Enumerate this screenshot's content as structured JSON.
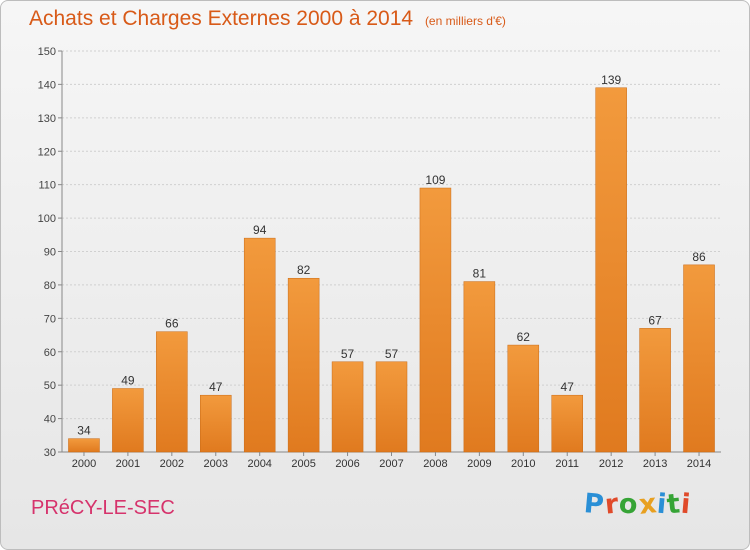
{
  "chart_data": {
    "type": "bar",
    "title": "Achats et Charges Externes 2000 à 2014",
    "subtitle": "(en milliers d'€)",
    "categories": [
      "2000",
      "2001",
      "2002",
      "2003",
      "2004",
      "2005",
      "2006",
      "2007",
      "2008",
      "2009",
      "2010",
      "2011",
      "2012",
      "2013",
      "2014"
    ],
    "values": [
      34,
      49,
      66,
      47,
      94,
      82,
      57,
      57,
      109,
      81,
      62,
      47,
      139,
      67,
      86
    ],
    "ylim": [
      30,
      150
    ],
    "yticks": [
      30,
      40,
      50,
      60,
      70,
      80,
      90,
      100,
      110,
      120,
      130,
      140,
      150
    ],
    "grid": true,
    "legend": "none",
    "bar_color": "#f29a3d",
    "bar_color_dark": "#e07a1f"
  },
  "footer": {
    "place": "PRéCY-LE-SEC",
    "brand": [
      "P",
      "r",
      "o",
      "x",
      "i",
      "t",
      "i"
    ],
    "brand_colors": [
      "#2a8fd6",
      "#e04a2a",
      "#36a436",
      "#e8a020",
      "#2a8fd6",
      "#36a436",
      "#e04a2a"
    ]
  }
}
